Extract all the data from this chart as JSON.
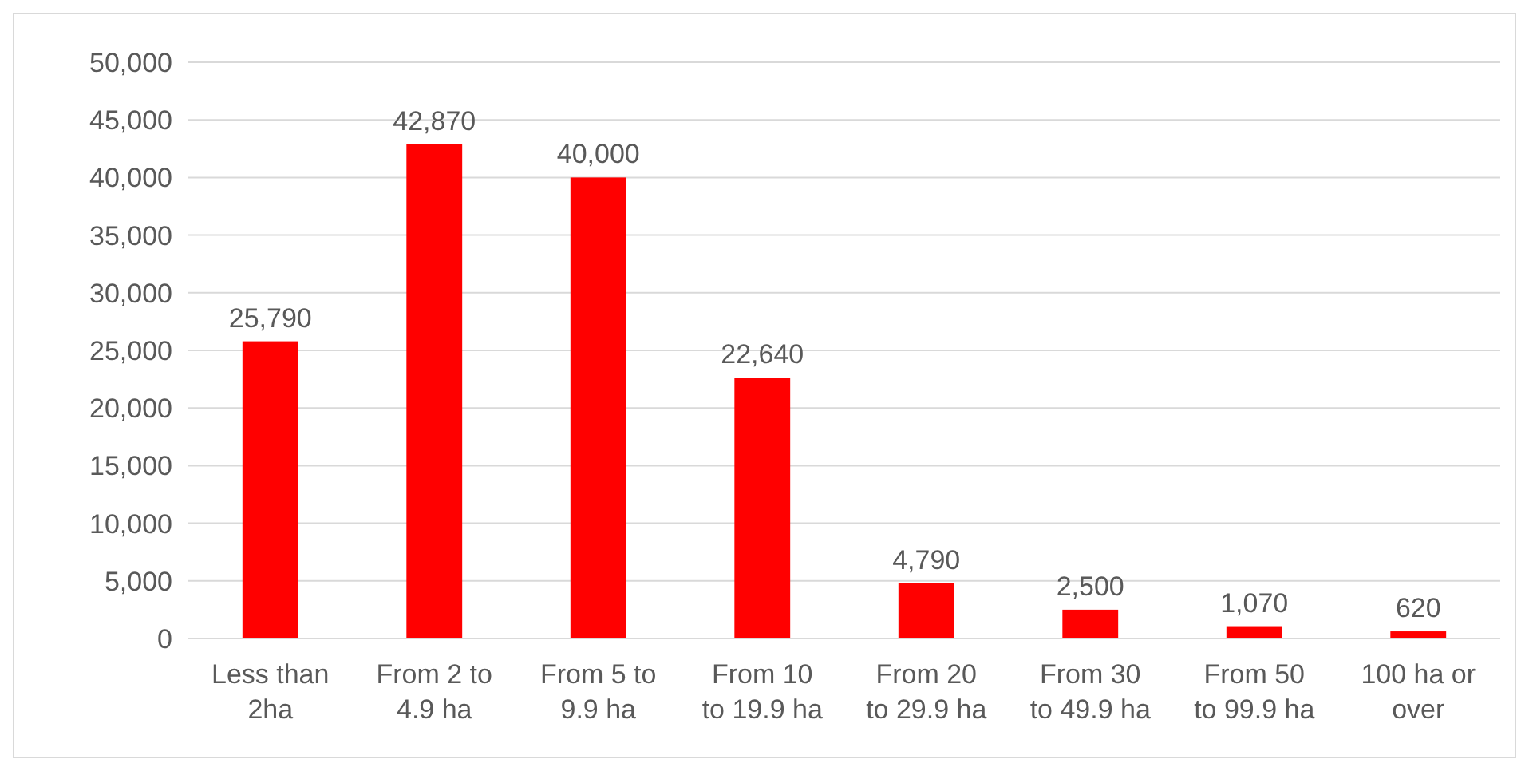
{
  "chart_data": {
    "type": "bar",
    "categories": [
      "Less than 2ha",
      "From 2 to 4.9 ha",
      "From 5 to 9.9 ha",
      "From 10 to 19.9 ha",
      "From 20 to 29.9 ha",
      "From 30 to 49.9 ha",
      "From 50 to 99.9 ha",
      "100 ha or over"
    ],
    "values": [
      25790,
      42870,
      40000,
      22640,
      4790,
      2500,
      1070,
      620
    ],
    "color": "#ff0000",
    "ylim": [
      0,
      50000
    ],
    "yticks": [
      {
        "value": 0,
        "label": "0"
      },
      {
        "value": 5000,
        "label": "5,000"
      },
      {
        "value": 10000,
        "label": "10,000"
      },
      {
        "value": 15000,
        "label": "15,000"
      },
      {
        "value": 20000,
        "label": "20,000"
      },
      {
        "value": 25000,
        "label": "25,000"
      },
      {
        "value": 30000,
        "label": "30,000"
      },
      {
        "value": 35000,
        "label": "35,000"
      },
      {
        "value": 40000,
        "label": "40,000"
      },
      {
        "value": 45000,
        "label": "45,000"
      },
      {
        "value": 50000,
        "label": "50,000"
      }
    ],
    "grid": true,
    "value_labels": [
      "25,790",
      "42,870",
      "40,000",
      "22,640",
      "4,790",
      "2,500",
      "1,070",
      "620"
    ]
  }
}
